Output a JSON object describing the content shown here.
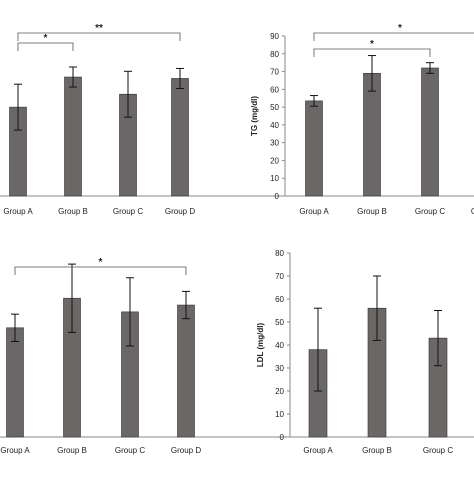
{
  "colors": {
    "bar": "#6b6767",
    "bar_edge": "#333333",
    "axis": "#8a8a8a",
    "text": "#222222"
  },
  "chart_data": [
    {
      "type": "bar",
      "categories": [
        "Group A",
        "Group B",
        "Group C",
        "Group D"
      ],
      "values": [
        62,
        83,
        71,
        82
      ],
      "errors": [
        16,
        7,
        16,
        7
      ],
      "ylim": [
        0,
        120
      ],
      "ylabel": "",
      "significance": [
        {
          "from": 0,
          "to": 1,
          "label": "*"
        },
        {
          "from": 0,
          "to": 3,
          "label": "**"
        }
      ]
    },
    {
      "type": "bar",
      "categories": [
        "Group A",
        "Group B",
        "Group C",
        "Group D"
      ],
      "values": [
        53.5,
        69,
        72,
        null
      ],
      "errors": [
        3,
        10,
        3,
        null
      ],
      "ylim": [
        0,
        90
      ],
      "yticks": [
        0,
        10,
        20,
        30,
        40,
        50,
        60,
        70,
        80,
        90
      ],
      "ylabel": "TG (mg/dl)",
      "significance": [
        {
          "from": 0,
          "to": 2,
          "label": "*"
        },
        {
          "from": 0,
          "to": 3,
          "label": "*"
        }
      ]
    },
    {
      "type": "bar",
      "categories": [
        "Group A",
        "Group B",
        "Group C",
        "Group D"
      ],
      "values": [
        48,
        61,
        55,
        58
      ],
      "errors": [
        6,
        15,
        15,
        6
      ],
      "ylim": [
        0,
        80
      ],
      "ylabel": "",
      "significance": [
        {
          "from": 0,
          "to": 3,
          "label": "*"
        }
      ]
    },
    {
      "type": "bar",
      "categories": [
        "Group A",
        "Group B",
        "Group C"
      ],
      "values": [
        38,
        56,
        43
      ],
      "errors": [
        18,
        14,
        12
      ],
      "ylim": [
        0,
        80
      ],
      "yticks": [
        0,
        10,
        20,
        30,
        40,
        50,
        60,
        70,
        80
      ],
      "ylabel": "LDL (mg/dl)",
      "significance": []
    }
  ]
}
